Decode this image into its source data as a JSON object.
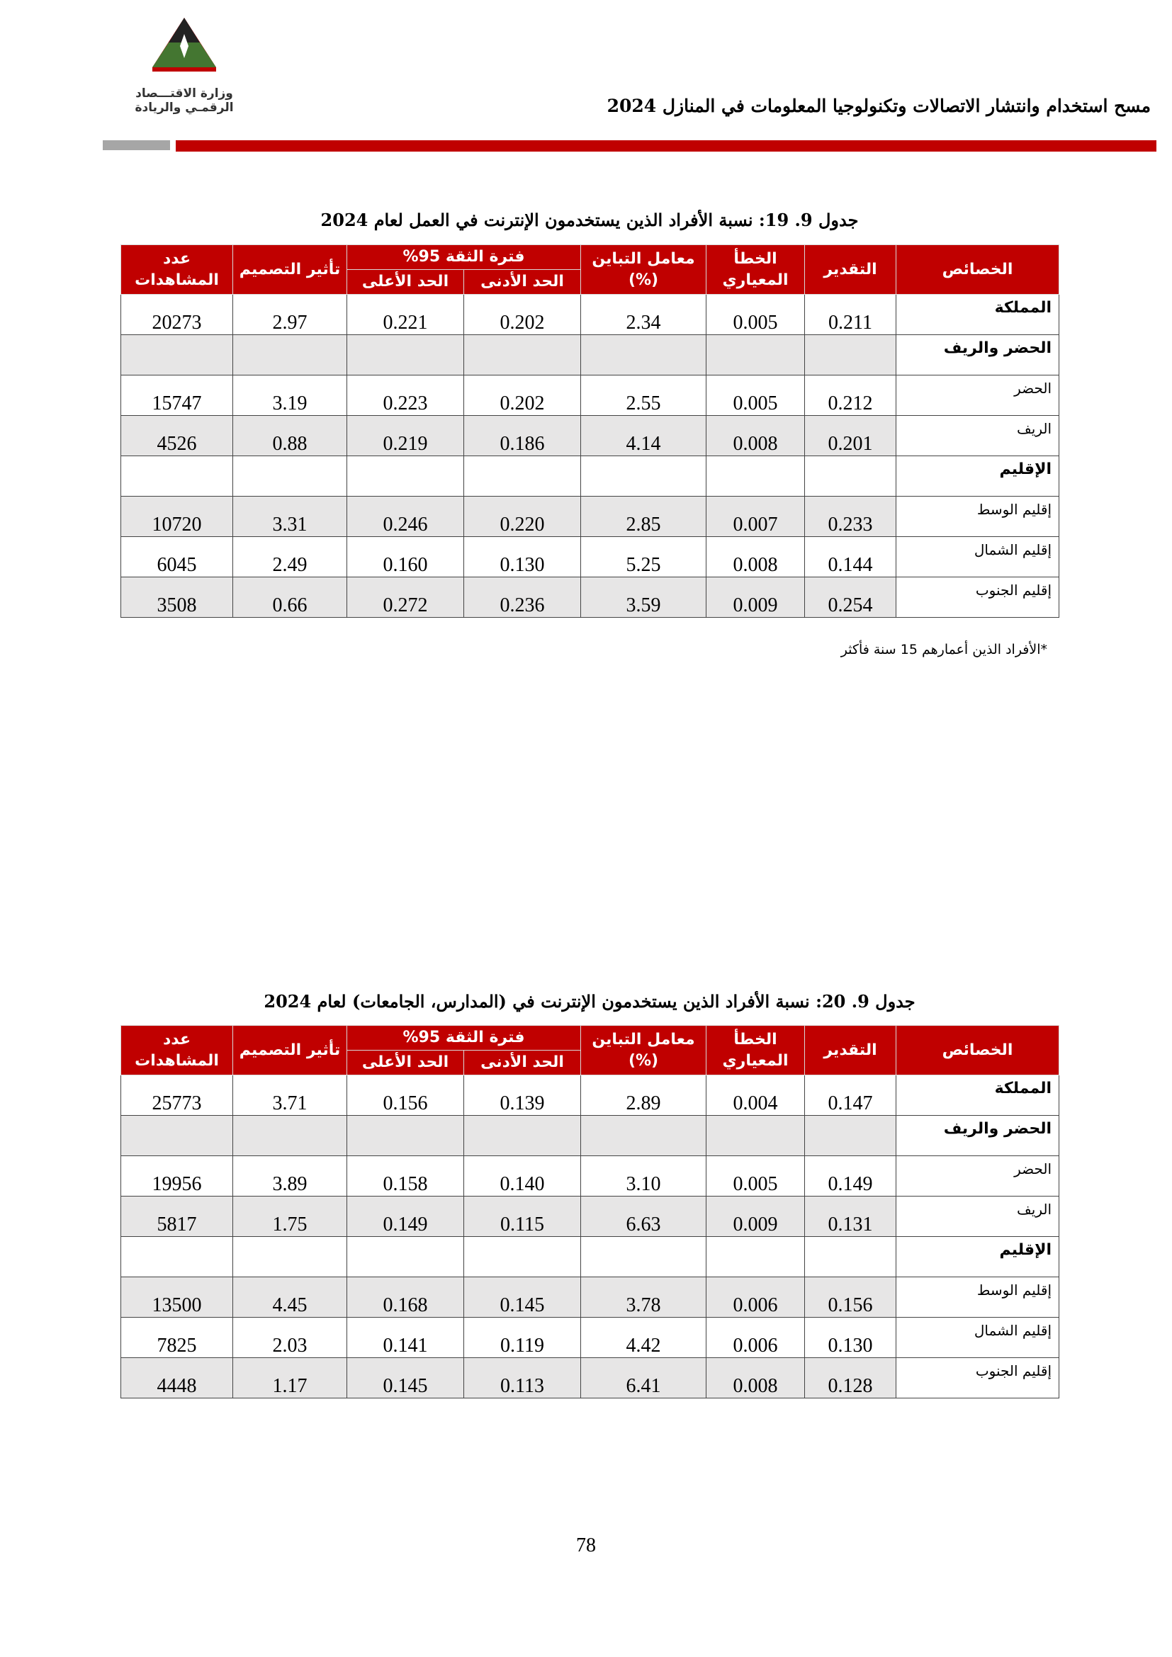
{
  "header": {
    "logo_lines": [
      "وزارة الاقتـــصاد",
      "الرقمـي والريادة"
    ],
    "title": "مسح استخدام وانتشار الاتصالات وتكنولوجيا المعلومات في المنازل 2024"
  },
  "tables": [
    {
      "caption": "جدول 9. 19: نسبة الأفراد الذين يستخدمون الإنترنت في العمل لعام 2024",
      "header": {
        "characteristics": "الخصائص",
        "estimate": "التقدير",
        "standard_error": "الخطأ المعياري",
        "cv": "معامل التباين (%)",
        "ci": "فترة الثقة 95%",
        "ci_lower": "الحد الأدنى",
        "ci_upper": "الحد الأعلى",
        "design_effect": "تأثير التصميم",
        "observations": "عدد المشاهدات"
      },
      "rows": [
        {
          "label": "المملكة",
          "values": [
            "0.211",
            "0.005",
            "2.34",
            "0.202",
            "0.221",
            "2.97",
            "20273"
          ]
        },
        {
          "label": "الحضر والريف"
        },
        {
          "label": "الحضر",
          "values": [
            "0.212",
            "0.005",
            "2.55",
            "0.202",
            "0.223",
            "3.19",
            "15747"
          ]
        },
        {
          "label": "الريف",
          "values": [
            "0.201",
            "0.008",
            "4.14",
            "0.186",
            "0.219",
            "0.88",
            "4526"
          ]
        },
        {
          "label": "الإقليم"
        },
        {
          "label": "إقليم الوسط",
          "values": [
            "0.233",
            "0.007",
            "2.85",
            "0.220",
            "0.246",
            "3.31",
            "10720"
          ]
        },
        {
          "label": "إقليم الشمال",
          "values": [
            "0.144",
            "0.008",
            "5.25",
            "0.130",
            "0.160",
            "2.49",
            "6045"
          ]
        },
        {
          "label": "إقليم الجنوب",
          "values": [
            "0.254",
            "0.009",
            "3.59",
            "0.236",
            "0.272",
            "0.66",
            "3508"
          ]
        }
      ],
      "note": "*الأفراد الذين أعمارهم 15 سنة فأكثر"
    },
    {
      "caption": "جدول 9. 20: نسبة الأفراد الذين يستخدمون الإنترنت في (المدارس، الجامعات) لعام 2024",
      "header": {
        "characteristics": "الخصائص",
        "estimate": "التقدير",
        "standard_error": "الخطأ المعياري",
        "cv": "معامل التباين (%)",
        "ci": "فترة الثقة 95%",
        "ci_lower": "الحد الأدنى",
        "ci_upper": "الحد الأعلى",
        "design_effect": "تأثير التصميم",
        "observations": "عدد المشاهدات"
      },
      "rows": [
        {
          "label": "المملكة",
          "values": [
            "0.147",
            "0.004",
            "2.89",
            "0.139",
            "0.156",
            "3.71",
            "25773"
          ]
        },
        {
          "label": "الحضر والريف"
        },
        {
          "label": "الحضر",
          "values": [
            "0.149",
            "0.005",
            "3.10",
            "0.140",
            "0.158",
            "3.89",
            "19956"
          ]
        },
        {
          "label": "الريف",
          "values": [
            "0.131",
            "0.009",
            "6.63",
            "0.115",
            "0.149",
            "1.75",
            "5817"
          ]
        },
        {
          "label": "الإقليم"
        },
        {
          "label": "إقليم الوسط",
          "values": [
            "0.156",
            "0.006",
            "3.78",
            "0.145",
            "0.168",
            "4.45",
            "13500"
          ]
        },
        {
          "label": "إقليم الشمال",
          "values": [
            "0.130",
            "0.006",
            "4.42",
            "0.119",
            "0.141",
            "2.03",
            "7825"
          ]
        },
        {
          "label": "إقليم الجنوب",
          "values": [
            "0.128",
            "0.008",
            "6.41",
            "0.113",
            "0.145",
            "1.17",
            "4448"
          ]
        }
      ]
    }
  ],
  "page_number": "78"
}
